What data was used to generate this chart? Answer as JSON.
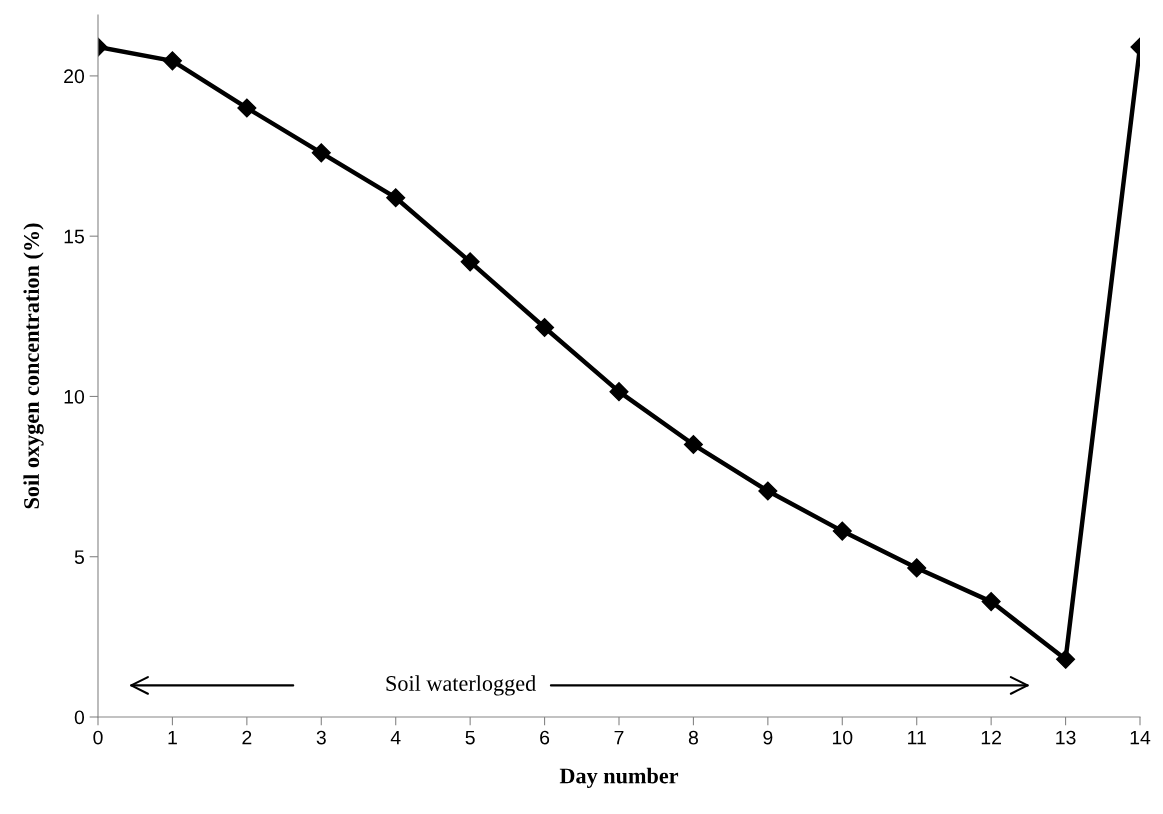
{
  "chart_data": {
    "type": "line",
    "xlabel": "Day number",
    "ylabel": "Soil oxygen concentration (%)",
    "x": [
      0,
      1,
      2,
      3,
      4,
      5,
      6,
      7,
      8,
      9,
      10,
      11,
      12,
      13,
      14
    ],
    "series": [
      {
        "color": "#000000",
        "values": [
          20.9,
          20.47,
          19.0,
          17.6,
          16.2,
          14.2,
          12.15,
          10.15,
          8.5,
          7.05,
          5.8,
          4.65,
          3.6,
          1.8,
          20.9
        ]
      }
    ],
    "xlim": [
      0,
      14
    ],
    "xticks": [
      0,
      1,
      2,
      3,
      4,
      5,
      6,
      7,
      8,
      9,
      10,
      11,
      12,
      13,
      14
    ],
    "ylim": [
      0,
      21.9
    ],
    "yticks": [
      0,
      5,
      10,
      15,
      20
    ],
    "annotations": [
      "Soil waterlogged"
    ],
    "grid": false,
    "legend": false,
    "marker": "diamond",
    "line_style": "solid"
  }
}
